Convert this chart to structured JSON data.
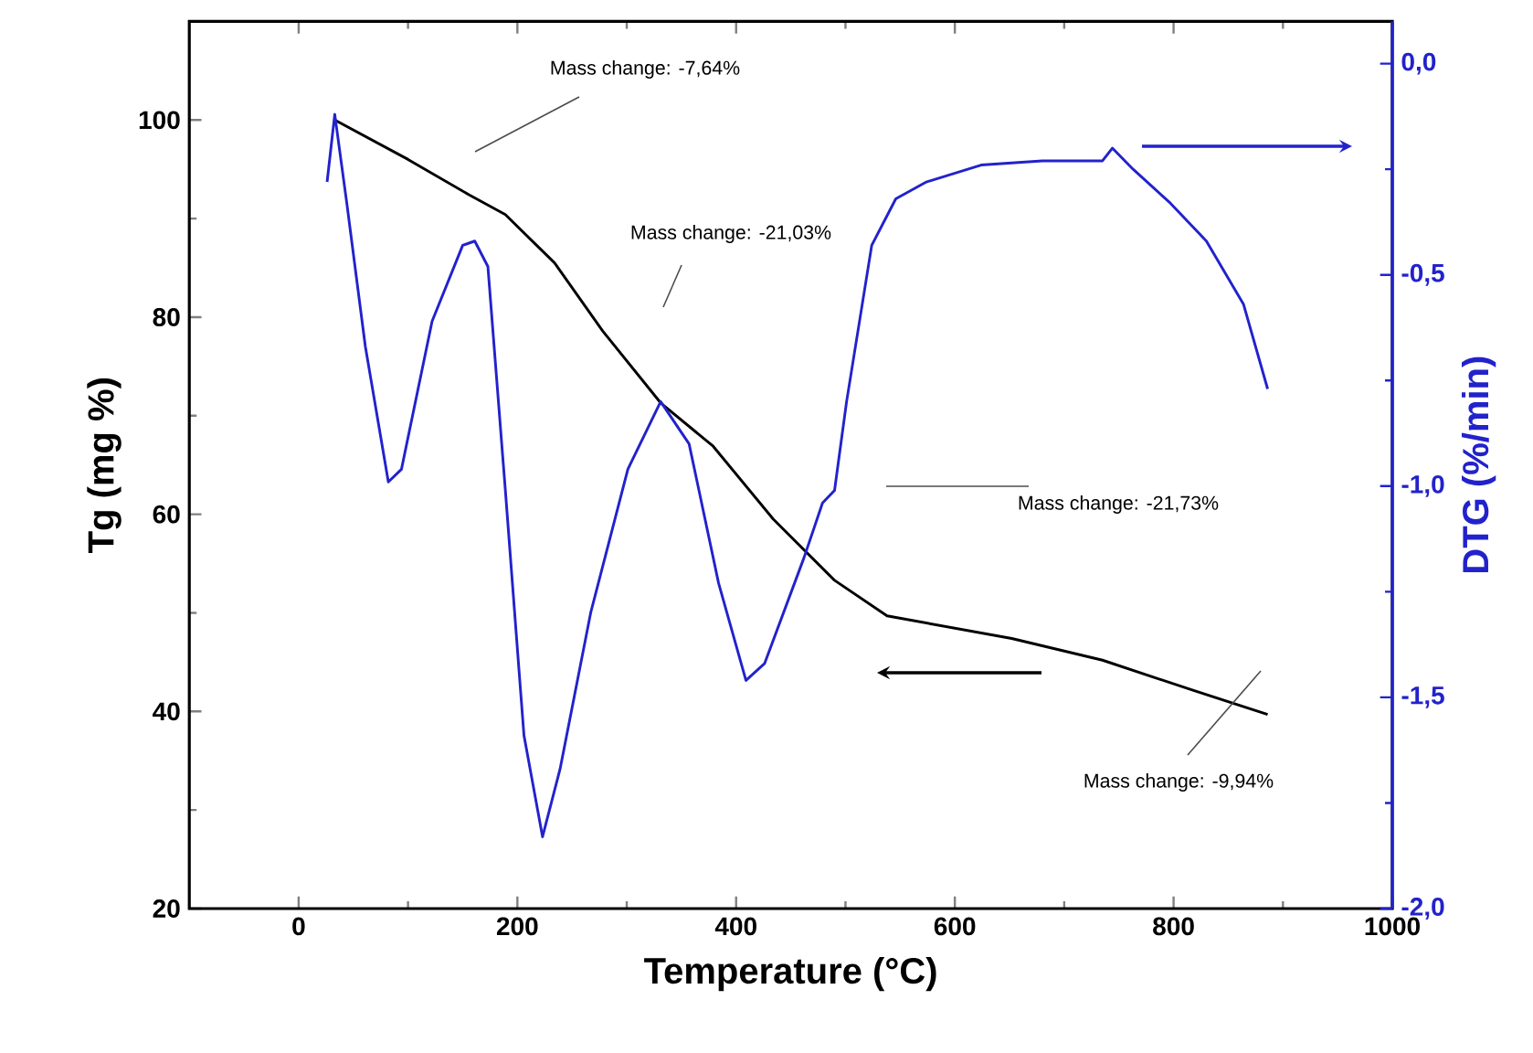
{
  "chart_data": {
    "type": "line",
    "xlabel": "Temperature (°C)",
    "ylabel": "Tg (mg %)",
    "y2label": "DTG (%/min)",
    "xlim": [
      -100,
      1000
    ],
    "xticks": [
      0,
      200,
      400,
      600,
      800,
      1000
    ],
    "ylim": [
      20,
      110
    ],
    "yticks": [
      20,
      40,
      60,
      80,
      100
    ],
    "y2lim": [
      -2.0,
      0.1
    ],
    "y2ticks": [
      {
        "value": 0,
        "label": "0,0"
      },
      {
        "value": -0.5,
        "label": "-0,5"
      },
      {
        "value": -1.0,
        "label": "-1,0"
      },
      {
        "value": -1.5,
        "label": "-1,5"
      },
      {
        "value": -2.0,
        "label": "-2,0"
      }
    ],
    "grid": false,
    "legend": false,
    "series": [
      {
        "color": "#000000",
        "x": [
          33,
          100,
          156,
          189,
          234,
          278,
          331,
          379,
          434,
          490,
          538,
          652,
          735,
          819,
          886
        ],
        "values": [
          100,
          96.0,
          92.4,
          90.4,
          85.5,
          78.6,
          71.3,
          66.9,
          59.5,
          53.3,
          49.7,
          47.4,
          45.2,
          42.1,
          39.7
        ]
      },
      {
        "color": "#2222cc",
        "axis": "y2",
        "x": [
          26,
          33,
          44,
          61,
          82,
          94,
          122,
          150,
          161,
          173,
          189,
          206,
          223,
          239,
          267,
          301,
          331,
          357,
          384,
          409,
          426,
          462,
          479,
          490,
          501,
          524,
          546,
          574,
          624,
          680,
          735,
          744,
          763,
          797,
          830,
          864,
          886
        ],
        "values": [
          -0.28,
          -0.12,
          -0.33,
          -0.67,
          -0.99,
          -0.96,
          -0.61,
          -0.43,
          -0.42,
          -0.48,
          -1.01,
          -1.59,
          -1.83,
          -1.67,
          -1.3,
          -0.96,
          -0.8,
          -0.9,
          -1.23,
          -1.46,
          -1.42,
          -1.17,
          -1.04,
          -1.01,
          -0.8,
          -0.43,
          -0.32,
          -0.28,
          -0.24,
          -0.23,
          -0.23,
          -0.2,
          -0.25,
          -0.33,
          -0.42,
          -0.57,
          -0.77
        ]
      }
    ],
    "annotations": [
      "Mass change: -7,64%",
      "Mass change: -21,03%",
      "Mass change: -21,73%",
      "Mass change: -9,94%"
    ]
  }
}
